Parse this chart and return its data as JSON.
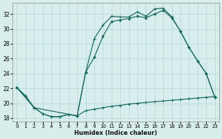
{
  "xlabel": "Humidex (Indice chaleur)",
  "bg_color": "#d7eeec",
  "grid_color": "#b8d8d5",
  "line_color": "#1a6b60",
  "xlim": [
    -0.5,
    23.5
  ],
  "ylim": [
    17.5,
    33.5
  ],
  "xticks": [
    0,
    1,
    2,
    3,
    4,
    5,
    6,
    7,
    8,
    9,
    10,
    11,
    12,
    13,
    14,
    15,
    16,
    17,
    18,
    19,
    20,
    21,
    22,
    23
  ],
  "yticks": [
    18,
    20,
    22,
    24,
    26,
    28,
    30,
    32
  ],
  "curve_top_x": [
    0,
    1,
    2,
    3,
    4,
    5,
    6,
    7,
    8,
    9,
    10,
    11,
    12,
    13,
    14,
    15,
    16,
    17,
    18,
    19,
    20,
    21,
    22,
    23
  ],
  "curve_top_y": [
    22.1,
    21.0,
    19.4,
    18.6,
    18.2,
    18.2,
    18.5,
    18.3,
    24.2,
    28.7,
    30.5,
    31.7,
    31.6,
    31.6,
    32.3,
    31.7,
    32.7,
    32.8,
    31.6,
    29.7,
    27.5,
    25.7,
    24.0,
    20.8
  ],
  "curve_mid_x": [
    0,
    2,
    7,
    8,
    9,
    10,
    11,
    12,
    13,
    14,
    15,
    16,
    17,
    18,
    19,
    20,
    21,
    22,
    23
  ],
  "curve_mid_y": [
    22.1,
    19.4,
    18.3,
    24.2,
    26.2,
    29.0,
    31.0,
    31.2,
    31.4,
    31.7,
    31.5,
    32.0,
    32.5,
    31.5,
    29.7,
    27.5,
    25.7,
    24.0,
    20.8
  ],
  "curve_bot_x": [
    0,
    1,
    2,
    3,
    4,
    5,
    6,
    7,
    8,
    9,
    10,
    11,
    12,
    13,
    14,
    15,
    16,
    17,
    18,
    19,
    20,
    21,
    22,
    23
  ],
  "curve_bot_y": [
    22.1,
    21.0,
    19.4,
    18.6,
    18.2,
    18.2,
    18.5,
    18.3,
    19.0,
    19.2,
    19.4,
    19.6,
    19.7,
    19.9,
    20.0,
    20.1,
    20.2,
    20.3,
    20.4,
    20.5,
    20.6,
    20.7,
    20.8,
    20.9
  ]
}
